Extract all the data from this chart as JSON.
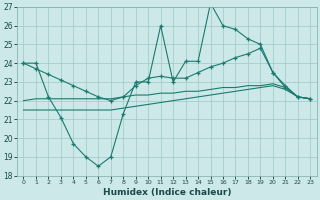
{
  "xlabel": "Humidex (Indice chaleur)",
  "bg_color": "#cde8e8",
  "grid_color": "#9ec8c8",
  "line_color": "#1a7a6e",
  "xlim": [
    -0.5,
    23.5
  ],
  "ylim": [
    18,
    27
  ],
  "yticks": [
    18,
    19,
    20,
    21,
    22,
    23,
    24,
    25,
    26,
    27
  ],
  "xticks": [
    0,
    1,
    2,
    3,
    4,
    5,
    6,
    7,
    8,
    9,
    10,
    11,
    12,
    13,
    14,
    15,
    16,
    17,
    18,
    19,
    20,
    21,
    22,
    23
  ],
  "series1_x": [
    0,
    1,
    2,
    3,
    4,
    5,
    6,
    7,
    8,
    9,
    10,
    11,
    12,
    13,
    14,
    15,
    16,
    17,
    18,
    19,
    20,
    21,
    22,
    23
  ],
  "series1_y": [
    24.0,
    24.0,
    22.2,
    21.1,
    19.7,
    19.0,
    18.5,
    19.0,
    21.3,
    23.0,
    23.0,
    26.0,
    23.0,
    24.1,
    24.1,
    27.2,
    26.0,
    25.8,
    25.3,
    25.0,
    23.5,
    22.8,
    22.2,
    22.1
  ],
  "series2_x": [
    0,
    1,
    2,
    3,
    4,
    5,
    6,
    7,
    8,
    9,
    10,
    11,
    12,
    13,
    14,
    15,
    16,
    17,
    18,
    19,
    20,
    21,
    22,
    23
  ],
  "series2_y": [
    24.0,
    23.7,
    23.4,
    23.1,
    22.8,
    22.5,
    22.2,
    22.0,
    22.2,
    22.8,
    23.2,
    23.3,
    23.2,
    23.2,
    23.5,
    23.8,
    24.0,
    24.3,
    24.5,
    24.8,
    23.5,
    22.7,
    22.2,
    22.1
  ],
  "series3_x": [
    0,
    1,
    2,
    3,
    4,
    5,
    6,
    7,
    8,
    9,
    10,
    11,
    12,
    13,
    14,
    15,
    16,
    17,
    18,
    19,
    20,
    21,
    22,
    23
  ],
  "series3_y": [
    22.0,
    22.1,
    22.1,
    22.1,
    22.1,
    22.1,
    22.1,
    22.1,
    22.2,
    22.3,
    22.3,
    22.4,
    22.4,
    22.5,
    22.5,
    22.6,
    22.7,
    22.7,
    22.8,
    22.8,
    22.9,
    22.7,
    22.2,
    22.1
  ],
  "series4_x": [
    0,
    1,
    2,
    3,
    4,
    5,
    6,
    7,
    8,
    9,
    10,
    11,
    12,
    13,
    14,
    15,
    16,
    17,
    18,
    19,
    20,
    21,
    22,
    23
  ],
  "series4_y": [
    21.5,
    21.5,
    21.5,
    21.5,
    21.5,
    21.5,
    21.5,
    21.5,
    21.6,
    21.7,
    21.8,
    21.9,
    22.0,
    22.1,
    22.2,
    22.3,
    22.4,
    22.5,
    22.6,
    22.7,
    22.8,
    22.6,
    22.2,
    22.1
  ]
}
